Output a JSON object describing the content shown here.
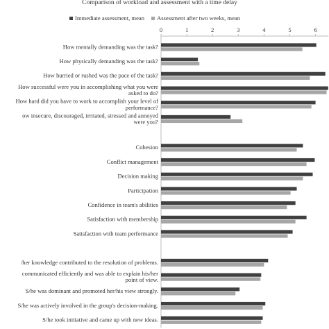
{
  "chart_data": {
    "type": "bar",
    "orientation": "horizontal",
    "title": "Comparison of workload and assessment with a time delay",
    "categories": [
      "How mentally demanding was the task?",
      "How physically demanding was the task?",
      "How hurried or rushed was the pace of the task?",
      "How successful were you in accomplishing what you were\nasked to do?",
      "How hard did you have to work to accomplish your level of\nperformance?",
      "ow insecure, discouraged, irritated, stressed and annoyed\nwere you?",
      null,
      "Cohesion",
      "Conflict management",
      "Decision making",
      "Participation",
      "Confidence in team's abilities",
      "Satisfaction with membership",
      "Satisfaction with team performance",
      null,
      "/her knowledge contributed to the resolution of problems.",
      "communicated efficiently and was able to explain his/her\npoint of view.",
      "S/he was dominant and promoted her/his view strongly.",
      "S/he was actively involved in the group's decision-making.",
      "S/he took initiative and came up with new ideas."
    ],
    "series": [
      {
        "name": "Immediate assessment, mean",
        "color": "#404040",
        "values": [
          6.03,
          1.43,
          6.38,
          6.49,
          6.0,
          2.7,
          null,
          5.51,
          5.97,
          5.89,
          5.27,
          5.22,
          5.65,
          5.11,
          null,
          4.16,
          3.89,
          3.05,
          4.05,
          3.95
        ]
      },
      {
        "name": "Assessment after two weeks, mean",
        "color": "#a6a6a6",
        "values": [
          5.49,
          1.49,
          5.78,
          6.43,
          5.84,
          3.16,
          null,
          5.27,
          5.65,
          5.51,
          5.03,
          4.89,
          5.22,
          4.92,
          null,
          4.0,
          3.86,
          2.89,
          3.95,
          3.89
        ]
      }
    ],
    "xlim": [
      0,
      6.5
    ],
    "xticks": [
      0,
      1,
      2,
      3,
      4,
      5,
      6
    ],
    "legend": "top"
  }
}
